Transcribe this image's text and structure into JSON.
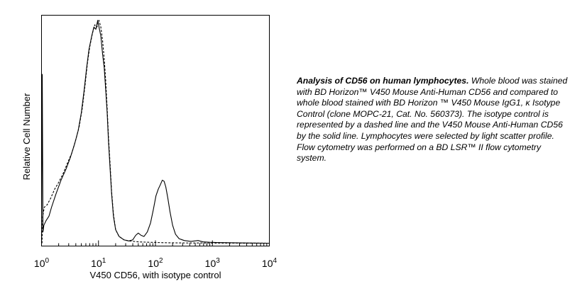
{
  "chart_data": {
    "type": "line",
    "title": "",
    "xlabel": "V450 CD56, with isotype control",
    "ylabel": "Relative Cell Number",
    "x_scale": "log",
    "xlim": [
      1,
      10000
    ],
    "x_ticks": [
      {
        "value": 1,
        "base": "10",
        "exp": "0"
      },
      {
        "value": 10,
        "base": "10",
        "exp": "1"
      },
      {
        "value": 100,
        "base": "10",
        "exp": "2"
      },
      {
        "value": 1000,
        "base": "10",
        "exp": "3"
      },
      {
        "value": 10000,
        "base": "10",
        "exp": "4"
      }
    ],
    "ylim": [
      0,
      1
    ],
    "grid": false,
    "series": [
      {
        "style": "solid",
        "points": [
          [
            1.0,
            0.0
          ],
          [
            1.03,
            0.75
          ],
          [
            1.06,
            0.05
          ],
          [
            1.1,
            0.08
          ],
          [
            1.2,
            0.1
          ],
          [
            1.35,
            0.12
          ],
          [
            1.5,
            0.16
          ],
          [
            1.8,
            0.22
          ],
          [
            2.2,
            0.28
          ],
          [
            2.7,
            0.33
          ],
          [
            3.2,
            0.38
          ],
          [
            3.8,
            0.44
          ],
          [
            4.4,
            0.5
          ],
          [
            5.0,
            0.58
          ],
          [
            5.6,
            0.68
          ],
          [
            6.2,
            0.78
          ],
          [
            6.8,
            0.86
          ],
          [
            7.6,
            0.92
          ],
          [
            8.3,
            0.96
          ],
          [
            9.0,
            0.95
          ],
          [
            9.7,
            0.99
          ],
          [
            10.4,
            0.95
          ],
          [
            11.0,
            0.92
          ],
          [
            11.8,
            0.84
          ],
          [
            12.6,
            0.78
          ],
          [
            13.4,
            0.68
          ],
          [
            14.2,
            0.58
          ],
          [
            15.0,
            0.45
          ],
          [
            16.0,
            0.33
          ],
          [
            17.0,
            0.22
          ],
          [
            18.3,
            0.12
          ],
          [
            20.0,
            0.06
          ],
          [
            23.0,
            0.03
          ],
          [
            28.0,
            0.015
          ],
          [
            34.0,
            0.01
          ],
          [
            40.0,
            0.015
          ],
          [
            45.0,
            0.035
          ],
          [
            50.0,
            0.045
          ],
          [
            56.0,
            0.035
          ],
          [
            63.0,
            0.03
          ],
          [
            72.0,
            0.05
          ],
          [
            82.0,
            0.09
          ],
          [
            92.0,
            0.15
          ],
          [
            102.0,
            0.21
          ],
          [
            112.0,
            0.24
          ],
          [
            122.0,
            0.26
          ],
          [
            132.0,
            0.28
          ],
          [
            142.0,
            0.275
          ],
          [
            152.0,
            0.25
          ],
          [
            165.0,
            0.2
          ],
          [
            180.0,
            0.14
          ],
          [
            200.0,
            0.08
          ],
          [
            225.0,
            0.04
          ],
          [
            260.0,
            0.02
          ],
          [
            320.0,
            0.012
          ],
          [
            420.0,
            0.008
          ],
          [
            560.0,
            0.012
          ],
          [
            680.0,
            0.006
          ],
          [
            900.0,
            0.004
          ],
          [
            1200.0,
            0.003
          ],
          [
            2000.0,
            0.002
          ],
          [
            4000.0,
            0.001
          ],
          [
            10000.0,
            0.0
          ]
        ]
      },
      {
        "style": "dashed",
        "points": [
          [
            1.02,
            0.0
          ],
          [
            1.05,
            0.12
          ],
          [
            1.12,
            0.16
          ],
          [
            1.25,
            0.17
          ],
          [
            1.45,
            0.2
          ],
          [
            1.7,
            0.24
          ],
          [
            2.0,
            0.27
          ],
          [
            2.4,
            0.31
          ],
          [
            2.9,
            0.36
          ],
          [
            3.4,
            0.4
          ],
          [
            4.0,
            0.46
          ],
          [
            4.6,
            0.52
          ],
          [
            5.2,
            0.6
          ],
          [
            5.8,
            0.7
          ],
          [
            6.4,
            0.8
          ],
          [
            7.0,
            0.87
          ],
          [
            7.8,
            0.93
          ],
          [
            8.6,
            0.97
          ],
          [
            9.4,
            0.96
          ],
          [
            10.2,
            0.99
          ],
          [
            11.0,
            0.96
          ],
          [
            11.8,
            0.9
          ],
          [
            12.6,
            0.82
          ],
          [
            13.4,
            0.72
          ],
          [
            14.2,
            0.6
          ],
          [
            15.0,
            0.47
          ],
          [
            16.0,
            0.35
          ],
          [
            17.0,
            0.23
          ],
          [
            18.3,
            0.13
          ],
          [
            20.0,
            0.06
          ],
          [
            23.0,
            0.03
          ],
          [
            28.0,
            0.015
          ],
          [
            35.0,
            0.01
          ],
          [
            50.0,
            0.006
          ],
          [
            80.0,
            0.004
          ],
          [
            150.0,
            0.002
          ],
          [
            400.0,
            0.001
          ],
          [
            10000.0,
            0.0
          ]
        ]
      }
    ]
  },
  "caption": {
    "title": "Analysis of CD56 on human lymphocytes.",
    "body": " Whole blood was stained with BD Horizon™ V450 Mouse Anti-Human CD56 and compared to whole blood stained with BD Horizon ™ V450 Mouse IgG1, κ Isotype Control (clone MOPC-21, Cat. No. 560373). The isotype control is represented by a dashed line and the V450 Mouse Anti-Human CD56 by the solid line. Lymphocytes were selected by light scatter profile. Flow cytometry was performed on a BD LSR™ II flow cytometry system."
  }
}
